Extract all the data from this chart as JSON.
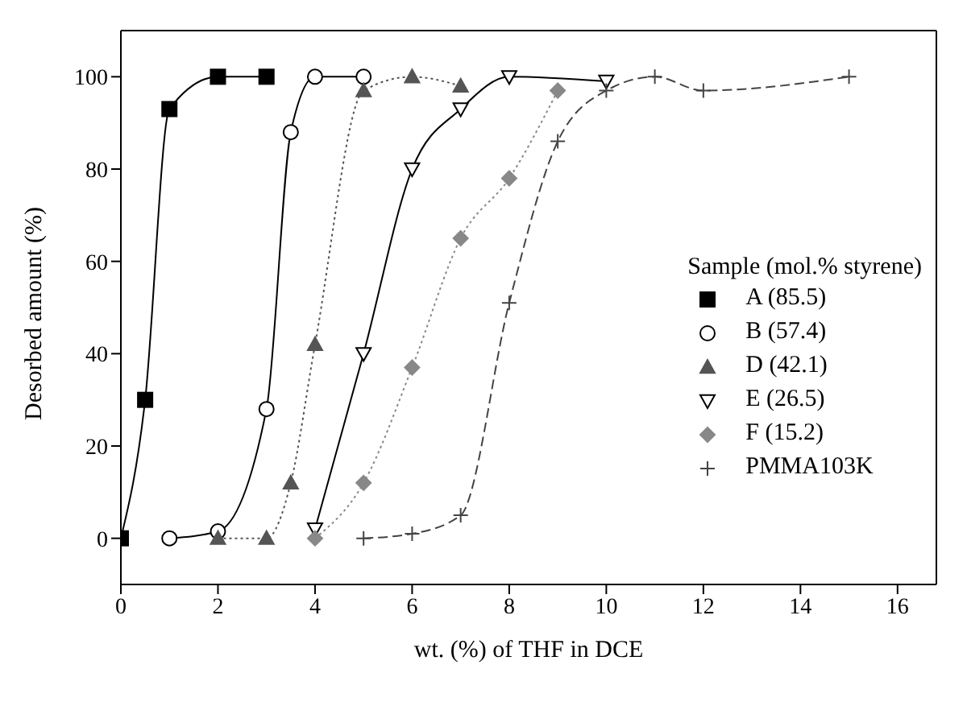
{
  "chart_data": {
    "type": "line",
    "xlabel": "wt. (%) of THF in DCE",
    "ylabel": "Desorbed amount (%)",
    "legend_title": "Sample (mol.% styrene)",
    "legend": "right",
    "xlim": [
      0,
      16.8
    ],
    "xticks": [
      0,
      2,
      4,
      6,
      8,
      10,
      12,
      14,
      16
    ],
    "ylim": [
      -10,
      110
    ],
    "yticks": [
      0,
      20,
      40,
      60,
      80,
      100
    ],
    "series": [
      {
        "name": "A (85.5)",
        "color": "#000000",
        "marker": "square",
        "line_style": "solid",
        "x": [
          0,
          0.5,
          1,
          2,
          3
        ],
        "values": [
          0,
          30,
          93,
          100,
          100
        ]
      },
      {
        "name": "B (57.4)",
        "color": "#000000",
        "marker": "circle",
        "line_style": "solid",
        "x": [
          1,
          2,
          3,
          3.5,
          4,
          5
        ],
        "values": [
          0,
          1.5,
          28,
          88,
          100,
          100
        ]
      },
      {
        "name": "D (42.1)",
        "color": "#555555",
        "marker": "triangle",
        "line_style": "dotted",
        "x": [
          2,
          3,
          3.5,
          4,
          5,
          6,
          7
        ],
        "values": [
          0,
          0,
          12,
          42,
          97,
          100,
          98
        ]
      },
      {
        "name": "E (26.5)",
        "color": "#000000",
        "marker": "triangle-down",
        "line_style": "solid",
        "x": [
          4,
          5,
          6,
          7,
          8,
          10
        ],
        "values": [
          2,
          40,
          80,
          93,
          100,
          99
        ]
      },
      {
        "name": "F (15.2)",
        "color": "#888888",
        "marker": "diamond",
        "line_style": "dotted",
        "x": [
          4,
          5,
          6,
          7,
          8,
          9
        ],
        "values": [
          0,
          12,
          37,
          65,
          78,
          97
        ]
      },
      {
        "name": "PMMA103K",
        "color": "#444444",
        "marker": "cross",
        "line_style": "dashed",
        "x": [
          5,
          6,
          7,
          8,
          9,
          10,
          11,
          12,
          15
        ],
        "values": [
          0,
          1,
          5,
          51,
          86,
          97,
          100,
          97,
          100
        ]
      }
    ]
  }
}
